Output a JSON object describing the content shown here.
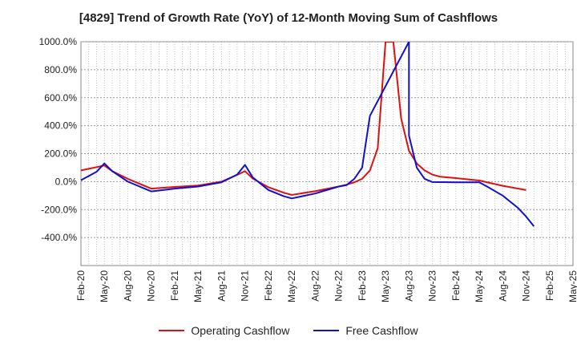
{
  "chart_data": {
    "type": "line",
    "title": "[4829]  Trend of Growth Rate (YoY) of 12-Month Moving Sum of Cashflows",
    "xlabel": "",
    "ylabel": "",
    "ylim": [
      -600,
      1000
    ],
    "y_ticks": [
      "1000.0%",
      "800.0%",
      "600.0%",
      "400.0%",
      "200.0%",
      "0.0%",
      "-200.0%",
      "-400.0%"
    ],
    "y_tick_values": [
      1000,
      800,
      600,
      400,
      200,
      0,
      -200,
      -400
    ],
    "x_ticks": [
      "Feb-20",
      "May-20",
      "Aug-20",
      "Nov-20",
      "Feb-21",
      "May-21",
      "Aug-21",
      "Nov-21",
      "Feb-22",
      "May-22",
      "Aug-22",
      "Nov-22",
      "Feb-23",
      "May-23",
      "Aug-23",
      "Nov-23",
      "Feb-24",
      "May-24",
      "Aug-24",
      "Nov-24",
      "Feb-25",
      "May-25"
    ],
    "x_range_months": [
      "Feb-20",
      "May-25"
    ],
    "grid": true,
    "legend_position": "bottom",
    "series": [
      {
        "name": "Operating Cashflow",
        "color": "#dd1111",
        "points": [
          [
            "Feb-20",
            80
          ],
          [
            "May-20",
            115
          ],
          [
            "Jun-20",
            75
          ],
          [
            "Aug-20",
            20
          ],
          [
            "Nov-20",
            -50
          ],
          [
            "Feb-21",
            -38
          ],
          [
            "May-21",
            -28
          ],
          [
            "Aug-21",
            0
          ],
          [
            "Oct-21",
            48
          ],
          [
            "Nov-21",
            75
          ],
          [
            "Dec-21",
            22
          ],
          [
            "Feb-22",
            -40
          ],
          [
            "Apr-22",
            -80
          ],
          [
            "May-22",
            -95
          ],
          [
            "Aug-22",
            -68
          ],
          [
            "Nov-22",
            -35
          ],
          [
            "Dec-22",
            -22
          ],
          [
            "Jan-23",
            -5
          ],
          [
            "Feb-23",
            20
          ],
          [
            "Mar-23",
            80
          ],
          [
            "Apr-23",
            240
          ],
          [
            "May-23",
            1000
          ],
          [
            "Jun-23",
            1000
          ],
          [
            "Jul-23",
            450
          ],
          [
            "Aug-23",
            220
          ],
          [
            "Sep-23",
            130
          ],
          [
            "Oct-23",
            80
          ],
          [
            "Nov-23",
            50
          ],
          [
            "Dec-23",
            35
          ],
          [
            "Feb-24",
            25
          ],
          [
            "May-24",
            8
          ],
          [
            "Aug-24",
            -30
          ],
          [
            "Nov-24",
            -60
          ]
        ]
      },
      {
        "name": "Free Cashflow",
        "color": "#1111cc",
        "points": [
          [
            "Feb-20",
            10
          ],
          [
            "Apr-20",
            70
          ],
          [
            "May-20",
            130
          ],
          [
            "Jun-20",
            75
          ],
          [
            "Aug-20",
            0
          ],
          [
            "Nov-20",
            -70
          ],
          [
            "Feb-21",
            -50
          ],
          [
            "May-21",
            -35
          ],
          [
            "Aug-21",
            -5
          ],
          [
            "Oct-21",
            50
          ],
          [
            "Nov-21",
            120
          ],
          [
            "Dec-21",
            30
          ],
          [
            "Feb-22",
            -60
          ],
          [
            "Apr-22",
            -105
          ],
          [
            "May-22",
            -120
          ],
          [
            "Aug-22",
            -85
          ],
          [
            "Nov-22",
            -35
          ],
          [
            "Dec-22",
            -25
          ],
          [
            "Jan-23",
            20
          ],
          [
            "Feb-23",
            100
          ],
          [
            "Mar-23",
            470
          ],
          [
            "Aug-23",
            1000
          ],
          [
            "Aug-23",
            330
          ],
          [
            "Sep-23",
            100
          ],
          [
            "Oct-23",
            20
          ],
          [
            "Nov-23",
            -3
          ],
          [
            "Feb-24",
            -5
          ],
          [
            "May-24",
            -5
          ],
          [
            "Jun-24",
            -35
          ],
          [
            "Aug-24",
            -100
          ],
          [
            "Oct-24",
            -190
          ],
          [
            "Nov-24",
            -250
          ],
          [
            "Dec-24",
            -320
          ]
        ]
      }
    ]
  }
}
